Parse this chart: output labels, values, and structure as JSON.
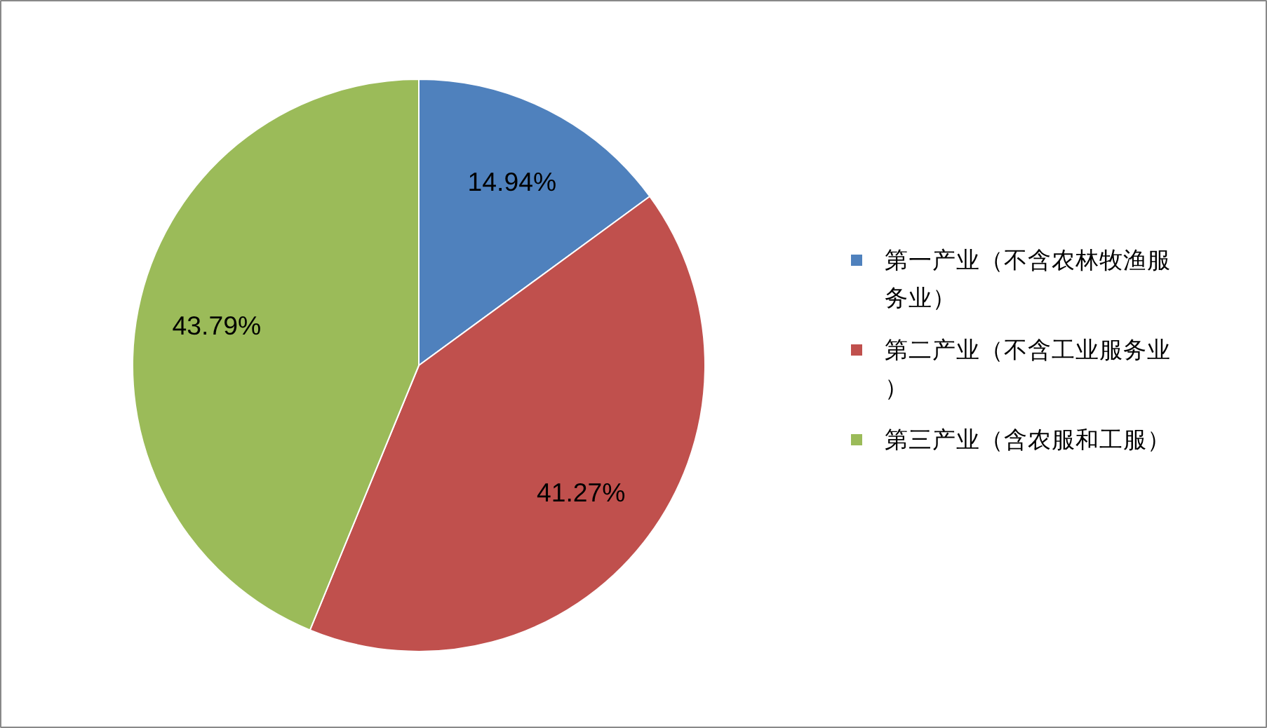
{
  "chart_data": {
    "type": "pie",
    "categories": [
      "第一产业（不含农林牧渔服务业）",
      "第二产业（不含工业服务业）",
      "第三产业（含农服和工服）"
    ],
    "values": [
      14.94,
      41.27,
      43.79
    ],
    "colors": [
      "#4f81bd",
      "#c0504d",
      "#9bbb59"
    ],
    "value_labels": [
      "14.94%",
      "41.27%",
      "43.79%"
    ],
    "legend": "right"
  }
}
